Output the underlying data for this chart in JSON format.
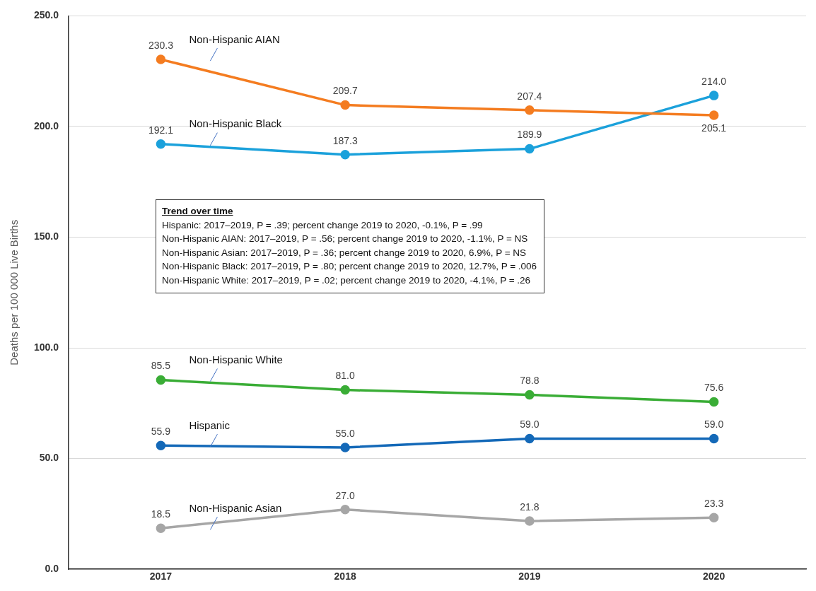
{
  "chart_data": {
    "type": "line",
    "ylabel": "Deaths per 100 000 Live Births",
    "categories": [
      "2017",
      "2018",
      "2019",
      "2020"
    ],
    "series": [
      {
        "name": "Non-Hispanic AIAN",
        "color": "#f47c20",
        "values": [
          230.3,
          209.7,
          207.4,
          205.1
        ],
        "value_labels": [
          "230.3",
          "209.7",
          "207.4",
          "205.1"
        ]
      },
      {
        "name": "Non-Hispanic Black",
        "color": "#1ba1db",
        "values": [
          192.1,
          187.3,
          189.9,
          214.0
        ],
        "value_labels": [
          "192.1",
          "187.3",
          "189.9",
          "214.0"
        ]
      },
      {
        "name": "Non-Hispanic White",
        "color": "#3aad36",
        "values": [
          85.5,
          81.0,
          78.8,
          75.6
        ],
        "value_labels": [
          "85.5",
          "81.0",
          "78.8",
          "75.6"
        ]
      },
      {
        "name": "Hispanic",
        "color": "#1469b8",
        "values": [
          55.9,
          55.0,
          59.0,
          59.0
        ],
        "value_labels": [
          "55.9",
          "55.0",
          "59.0",
          "59.0"
        ]
      },
      {
        "name": "Non-Hispanic Asian",
        "color": "#a6a6a6",
        "values": [
          18.5,
          27.0,
          21.8,
          23.3
        ],
        "value_labels": [
          "18.5",
          "27.0",
          "21.8",
          "23.3"
        ]
      }
    ],
    "ylim": [
      0,
      250
    ],
    "yticks": [
      {
        "value": 0,
        "label": "0.0"
      },
      {
        "value": 50,
        "label": "50.0"
      },
      {
        "value": 100,
        "label": "100.0"
      },
      {
        "value": 150,
        "label": "150.0"
      },
      {
        "value": 200,
        "label": "200.0"
      },
      {
        "value": 250,
        "label": "250.0"
      }
    ],
    "grid": "y",
    "legend": false,
    "marker": "circle",
    "line_style": "solid",
    "annotations": [
      "Trend over time",
      "Hispanic: 2017–2019, P = .39; percent change 2019 to 2020, -0.1%, P = .99",
      "Non-Hispanic AIAN: 2017–2019, P = .56; percent change 2019 to 2020, -1.1%, P = NS",
      "Non-Hispanic Asian: 2017–2019, P = .36; percent change 2019 to 2020, 6.9%, P = NS",
      "Non-Hispanic Black: 2017–2019, P = .80; percent change 2019 to 2020, 12.7%, P = .006",
      "Non-Hispanic White: 2017–2019, P = .02; percent change 2019 to 2020, -4.1%, P = .26"
    ]
  }
}
